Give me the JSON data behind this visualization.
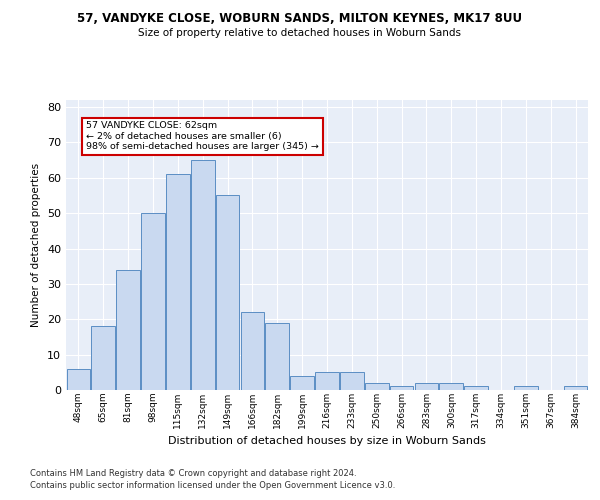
{
  "title": "57, VANDYKE CLOSE, WOBURN SANDS, MILTON KEYNES, MK17 8UU",
  "subtitle": "Size of property relative to detached houses in Woburn Sands",
  "xlabel": "Distribution of detached houses by size in Woburn Sands",
  "ylabel": "Number of detached properties",
  "categories": [
    "48sqm",
    "65sqm",
    "81sqm",
    "98sqm",
    "115sqm",
    "132sqm",
    "149sqm",
    "166sqm",
    "182sqm",
    "199sqm",
    "216sqm",
    "233sqm",
    "250sqm",
    "266sqm",
    "283sqm",
    "300sqm",
    "317sqm",
    "334sqm",
    "351sqm",
    "367sqm",
    "384sqm"
  ],
  "values": [
    6,
    18,
    34,
    50,
    61,
    65,
    55,
    22,
    19,
    4,
    5,
    5,
    2,
    1,
    2,
    2,
    1,
    0,
    1,
    0,
    1
  ],
  "bar_color": "#c9d9f0",
  "bar_edge_color": "#5b8ec4",
  "annotation_box_color": "#ffffff",
  "annotation_border_color": "#cc0000",
  "annotation_text": "57 VANDYKE CLOSE: 62sqm\n← 2% of detached houses are smaller (6)\n98% of semi-detached houses are larger (345) →",
  "ylim": [
    0,
    82
  ],
  "yticks": [
    0,
    10,
    20,
    30,
    40,
    50,
    60,
    70,
    80
  ],
  "background_color": "#e8eef8",
  "footer_line1": "Contains HM Land Registry data © Crown copyright and database right 2024.",
  "footer_line2": "Contains public sector information licensed under the Open Government Licence v3.0."
}
